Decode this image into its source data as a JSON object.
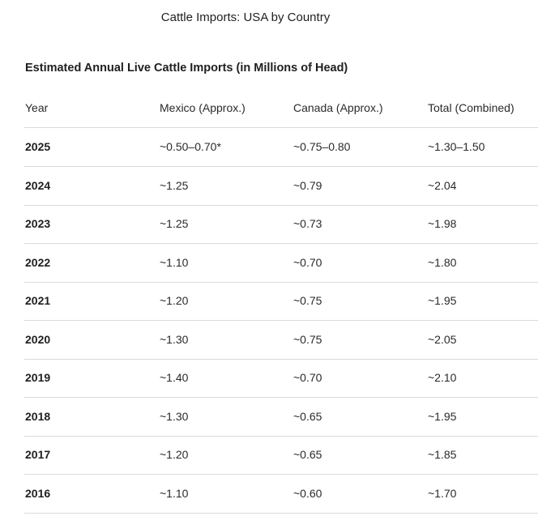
{
  "header": {
    "title": "Cattle Imports: USA by Country"
  },
  "table": {
    "title": "Estimated Annual Live Cattle Imports (in Millions of Head)",
    "columns": [
      "Year",
      "Mexico (Approx.)",
      "Canada (Approx.)",
      "Total (Combined)"
    ],
    "rows": [
      [
        "2025",
        "~0.50–0.70*",
        "~0.75–0.80",
        "~1.30–1.50"
      ],
      [
        "2024",
        "~1.25",
        "~0.79",
        "~2.04"
      ],
      [
        "2023",
        "~1.25",
        "~0.73",
        "~1.98"
      ],
      [
        "2022",
        "~1.10",
        "~0.70",
        "~1.80"
      ],
      [
        "2021",
        "~1.20",
        "~0.75",
        "~1.95"
      ],
      [
        "2020",
        "~1.30",
        "~0.75",
        "~2.05"
      ],
      [
        "2019",
        "~1.40",
        "~0.70",
        "~2.10"
      ],
      [
        "2018",
        "~1.30",
        "~0.65",
        "~1.95"
      ],
      [
        "2017",
        "~1.20",
        "~0.65",
        "~1.85"
      ],
      [
        "2016",
        "~1.10",
        "~0.60",
        "~1.70"
      ]
    ]
  }
}
